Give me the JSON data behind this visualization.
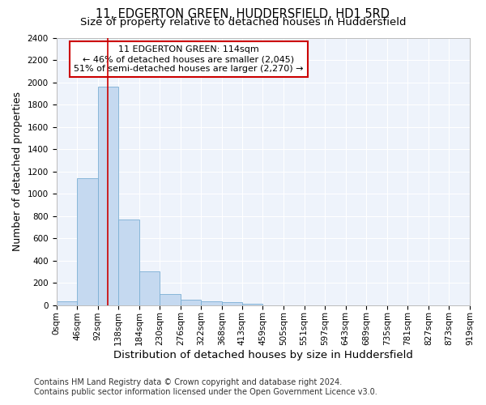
{
  "title": "11, EDGERTON GREEN, HUDDERSFIELD, HD1 5RD",
  "subtitle": "Size of property relative to detached houses in Huddersfield",
  "xlabel": "Distribution of detached houses by size in Huddersfield",
  "ylabel": "Number of detached properties",
  "footer_line1": "Contains HM Land Registry data © Crown copyright and database right 2024.",
  "footer_line2": "Contains public sector information licensed under the Open Government Licence v3.0.",
  "annotation_line1": "11 EDGERTON GREEN: 114sqm",
  "annotation_line2": "← 46% of detached houses are smaller (2,045)",
  "annotation_line3": "51% of semi-detached houses are larger (2,270) →",
  "bar_values": [
    35,
    1140,
    1960,
    770,
    300,
    100,
    45,
    35,
    25,
    15,
    0,
    0,
    0,
    0,
    0,
    0,
    0,
    0,
    0,
    0
  ],
  "bin_edges": [
    0,
    46,
    92,
    138,
    184,
    230,
    276,
    322,
    368,
    413,
    459,
    505,
    551,
    597,
    643,
    689,
    735,
    781,
    827,
    873,
    919
  ],
  "tick_labels": [
    "0sqm",
    "46sqm",
    "92sqm",
    "138sqm",
    "184sqm",
    "230sqm",
    "276sqm",
    "322sqm",
    "368sqm",
    "413sqm",
    "459sqm",
    "505sqm",
    "551sqm",
    "597sqm",
    "643sqm",
    "689sqm",
    "735sqm",
    "781sqm",
    "827sqm",
    "873sqm",
    "919sqm"
  ],
  "ylim": [
    0,
    2400
  ],
  "yticks": [
    0,
    200,
    400,
    600,
    800,
    1000,
    1200,
    1400,
    1600,
    1800,
    2000,
    2200,
    2400
  ],
  "bar_color": "#c5d9f0",
  "bar_edge_color": "#7bafd4",
  "vline_x": 114,
  "vline_color": "#cc0000",
  "annotation_box_color": "#cc0000",
  "bg_color": "#eef3fb",
  "grid_color": "#ffffff",
  "title_fontsize": 10.5,
  "subtitle_fontsize": 9.5,
  "axis_label_fontsize": 9,
  "tick_fontsize": 7.5,
  "annotation_fontsize": 8,
  "footer_fontsize": 7
}
